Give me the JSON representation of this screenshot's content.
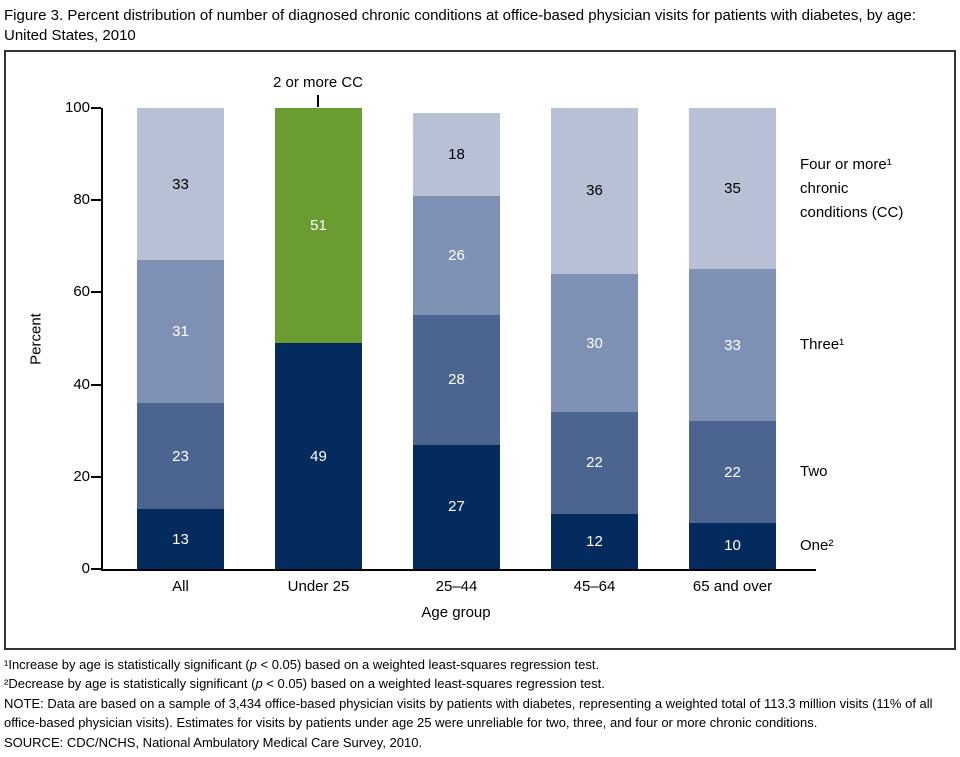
{
  "title": "Figure 3. Percent distribution of number of diagnosed chronic conditions at office-based physician visits for patients with diabetes, by age: United States, 2010",
  "chart_data": {
    "type": "bar",
    "stacked": true,
    "categories": [
      "All",
      "Under 25",
      "25–44",
      "45–64",
      "65 and over"
    ],
    "series": [
      {
        "name": "One²",
        "color": "#032b5e",
        "label_color": "#ffffff",
        "values": [
          13,
          49,
          27,
          12,
          10
        ]
      },
      {
        "name": "Two",
        "color": "#4c6590",
        "label_color": "#ffffff",
        "values": [
          23,
          null,
          28,
          22,
          22
        ]
      },
      {
        "name": "Three¹",
        "color": "#7e90b4",
        "label_color": "#ffffff",
        "values": [
          31,
          null,
          26,
          30,
          33
        ]
      },
      {
        "name": "Four or more¹ chronic conditions (CC)",
        "color": "#b8c0d6",
        "label_color": "#000000",
        "values": [
          33,
          null,
          18,
          36,
          35
        ]
      },
      {
        "name": "2 or more CC",
        "color": "#6a9c31",
        "label_color": "#ffffff",
        "values": [
          null,
          51,
          null,
          null,
          null
        ]
      }
    ],
    "xlabel": "Age group",
    "ylabel": "Percent",
    "ylim": [
      0,
      100
    ],
    "yticks": [
      0,
      20,
      40,
      60,
      80,
      100
    ],
    "grid": false,
    "legend_position": "right-of-last-bar",
    "annotation": {
      "text": "2 or more CC",
      "target_category": "Under 25"
    }
  },
  "side_labels": {
    "four": "Four or more¹\nchronic\nconditions (CC)",
    "three": "Three¹",
    "two": "Two",
    "one": "One²"
  },
  "footnotes": {
    "fn1": {
      "pre": "¹Increase by age is statistically significant (",
      "italic": "p",
      "post": " < 0.05) based on a weighted least-squares regression test."
    },
    "fn2": {
      "pre": "²Decrease by age is statistically significant (",
      "italic": "p",
      "post": " < 0.05) based on a weighted least-squares regression test."
    },
    "note": "NOTE: Data are based on a sample of 3,434 office-based physician visits by patients with diabetes, representing a weighted total of 113.3 million visits (11% of all office-based physician visits). Estimates for visits by patients under age 25 were unreliable for two, three, and four or more chronic conditions.",
    "source": "SOURCE: CDC/NCHS, National Ambulatory Medical Care Survey, 2010."
  }
}
